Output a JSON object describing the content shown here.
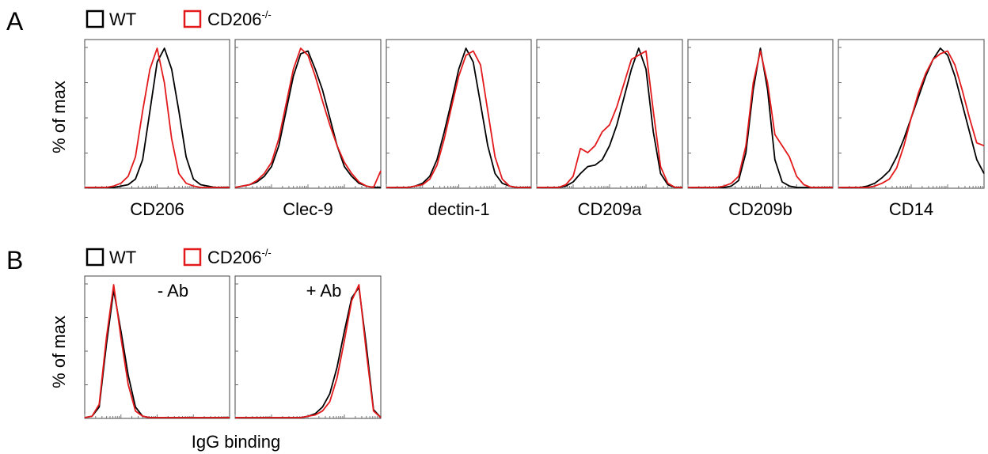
{
  "panel_a": {
    "label": "A",
    "legend": {
      "wt": "WT",
      "ko_base": "CD206",
      "ko_sup": "-/-"
    },
    "ylabel": "% of max"
  },
  "panel_b": {
    "label": "B",
    "legend": {
      "wt": "WT",
      "ko_base": "CD206",
      "ko_sup": "-/-"
    },
    "ylabel": "% of max",
    "xlabel": "IgG binding"
  },
  "colors": {
    "wt": "#000000",
    "ko": "#e31a1c",
    "frame": "#444444"
  },
  "chart_data": [
    {
      "id": "CD206",
      "type": "line",
      "panel": "A",
      "xlabel": "CD206",
      "inset": "",
      "x": [
        0,
        0.05,
        0.1,
        0.15,
        0.2,
        0.25,
        0.3,
        0.35,
        0.4,
        0.45,
        0.5,
        0.55,
        0.6,
        0.65,
        0.7,
        0.75,
        0.8,
        0.85,
        0.9,
        0.95,
        1
      ],
      "series": [
        {
          "name": "WT",
          "color": "wt",
          "values": [
            0,
            0,
            0,
            0,
            0,
            0.01,
            0.02,
            0.06,
            0.2,
            0.55,
            0.9,
            1.0,
            0.85,
            0.55,
            0.22,
            0.06,
            0.02,
            0.01,
            0,
            0,
            0
          ]
        },
        {
          "name": "CD206-/-",
          "color": "ko",
          "values": [
            0,
            0,
            0,
            0,
            0.01,
            0.03,
            0.08,
            0.22,
            0.55,
            0.85,
            1.0,
            0.75,
            0.35,
            0.1,
            0.03,
            0.01,
            0,
            0,
            0,
            0,
            0
          ]
        }
      ]
    },
    {
      "id": "Clec-9",
      "type": "line",
      "panel": "A",
      "xlabel": "Clec-9",
      "inset": "",
      "x": [
        0,
        0.05,
        0.1,
        0.15,
        0.2,
        0.25,
        0.3,
        0.35,
        0.4,
        0.45,
        0.5,
        0.55,
        0.6,
        0.65,
        0.7,
        0.75,
        0.8,
        0.85,
        0.9,
        0.95,
        1
      ],
      "series": [
        {
          "name": "WT",
          "color": "wt",
          "values": [
            0,
            0.01,
            0.02,
            0.04,
            0.08,
            0.15,
            0.3,
            0.55,
            0.8,
            0.96,
            0.98,
            0.85,
            0.7,
            0.5,
            0.3,
            0.15,
            0.08,
            0.03,
            0.01,
            0,
            0
          ]
        },
        {
          "name": "CD206-/-",
          "color": "ko",
          "values": [
            0,
            0.01,
            0.02,
            0.05,
            0.1,
            0.18,
            0.35,
            0.6,
            0.85,
            1.0,
            0.95,
            0.8,
            0.62,
            0.45,
            0.3,
            0.18,
            0.1,
            0.04,
            0.01,
            0,
            0.12
          ]
        }
      ]
    },
    {
      "id": "dectin-1",
      "type": "line",
      "panel": "A",
      "xlabel": "dectin-1",
      "inset": "",
      "x": [
        0,
        0.05,
        0.1,
        0.15,
        0.2,
        0.25,
        0.3,
        0.35,
        0.4,
        0.45,
        0.5,
        0.55,
        0.6,
        0.65,
        0.7,
        0.75,
        0.8,
        0.85,
        0.9,
        0.95,
        1
      ],
      "series": [
        {
          "name": "WT",
          "color": "wt",
          "values": [
            0,
            0,
            0,
            0,
            0.01,
            0.03,
            0.08,
            0.2,
            0.4,
            0.62,
            0.85,
            1.0,
            0.9,
            0.6,
            0.3,
            0.1,
            0.03,
            0.01,
            0,
            0,
            0
          ]
        },
        {
          "name": "CD206-/-",
          "color": "ko",
          "values": [
            0,
            0,
            0,
            0,
            0.01,
            0.02,
            0.06,
            0.16,
            0.35,
            0.58,
            0.8,
            0.95,
            0.98,
            0.88,
            0.55,
            0.22,
            0.06,
            0.01,
            0,
            0,
            0
          ]
        }
      ]
    },
    {
      "id": "CD209a",
      "type": "line",
      "panel": "A",
      "xlabel": "CD209a",
      "inset": "",
      "x": [
        0,
        0.05,
        0.1,
        0.15,
        0.2,
        0.25,
        0.3,
        0.35,
        0.4,
        0.45,
        0.5,
        0.55,
        0.6,
        0.65,
        0.7,
        0.75,
        0.8,
        0.85,
        0.9,
        0.95,
        1
      ],
      "series": [
        {
          "name": "WT",
          "color": "wt",
          "values": [
            0,
            0,
            0,
            0,
            0.01,
            0.04,
            0.1,
            0.15,
            0.16,
            0.2,
            0.3,
            0.45,
            0.65,
            0.85,
            1.0,
            0.85,
            0.4,
            0.1,
            0.02,
            0,
            0
          ]
        },
        {
          "name": "CD206-/-",
          "color": "ko",
          "values": [
            0,
            0,
            0,
            0,
            0.02,
            0.08,
            0.28,
            0.25,
            0.3,
            0.4,
            0.45,
            0.58,
            0.75,
            0.92,
            0.95,
            0.98,
            0.55,
            0.15,
            0.03,
            0,
            0
          ]
        }
      ]
    },
    {
      "id": "CD209b",
      "type": "line",
      "panel": "A",
      "xlabel": "CD209b",
      "inset": "",
      "x": [
        0,
        0.05,
        0.1,
        0.15,
        0.2,
        0.25,
        0.3,
        0.35,
        0.4,
        0.45,
        0.5,
        0.55,
        0.6,
        0.65,
        0.7,
        0.75,
        0.8,
        0.85,
        0.9,
        0.95,
        1
      ],
      "series": [
        {
          "name": "WT",
          "color": "wt",
          "values": [
            0,
            0,
            0,
            0,
            0,
            0,
            0.01,
            0.05,
            0.25,
            0.7,
            1.0,
            0.7,
            0.2,
            0.04,
            0.01,
            0,
            0,
            0,
            0,
            0,
            0
          ]
        },
        {
          "name": "CD206-/-",
          "color": "ko",
          "values": [
            0,
            0,
            0,
            0,
            0,
            0.01,
            0.03,
            0.08,
            0.3,
            0.75,
            0.98,
            0.75,
            0.38,
            0.3,
            0.22,
            0.08,
            0.02,
            0,
            0,
            0,
            0
          ]
        }
      ]
    },
    {
      "id": "CD14",
      "type": "line",
      "panel": "A",
      "xlabel": "CD14",
      "inset": "",
      "x": [
        0,
        0.05,
        0.1,
        0.15,
        0.2,
        0.25,
        0.3,
        0.35,
        0.4,
        0.45,
        0.5,
        0.55,
        0.6,
        0.65,
        0.7,
        0.75,
        0.8,
        0.85,
        0.9,
        0.95,
        1
      ],
      "series": [
        {
          "name": "WT",
          "color": "wt",
          "values": [
            0,
            0,
            0,
            0,
            0.01,
            0.03,
            0.07,
            0.12,
            0.22,
            0.35,
            0.5,
            0.65,
            0.8,
            0.92,
            1.0,
            0.95,
            0.8,
            0.6,
            0.4,
            0.2,
            0.1
          ]
        },
        {
          "name": "CD206-/-",
          "color": "ko",
          "values": [
            0,
            0,
            0,
            0,
            0,
            0.01,
            0.03,
            0.06,
            0.14,
            0.3,
            0.5,
            0.68,
            0.82,
            0.92,
            0.96,
            0.98,
            0.88,
            0.7,
            0.5,
            0.32,
            0.3
          ]
        }
      ]
    },
    {
      "id": "minus-ab",
      "type": "line",
      "panel": "B",
      "xlabel": "",
      "inset": "- Ab",
      "x": [
        0,
        0.05,
        0.1,
        0.15,
        0.2,
        0.25,
        0.3,
        0.35,
        0.4,
        0.45,
        0.5,
        0.55,
        0.6,
        0.65,
        0.7,
        0.75,
        0.8,
        0.85,
        0.9,
        0.95,
        1
      ],
      "series": [
        {
          "name": "WT",
          "color": "wt",
          "values": [
            0,
            0.01,
            0.08,
            0.55,
            0.96,
            0.65,
            0.32,
            0.08,
            0.01,
            0,
            0,
            0,
            0,
            0,
            0,
            0,
            0,
            0,
            0,
            0,
            0
          ]
        },
        {
          "name": "CD206-/-",
          "color": "ko",
          "values": [
            0,
            0.01,
            0.1,
            0.6,
            1.0,
            0.6,
            0.25,
            0.05,
            0.01,
            0,
            0,
            0,
            0,
            0,
            0,
            0,
            0,
            0,
            0,
            0,
            0
          ]
        }
      ]
    },
    {
      "id": "plus-ab",
      "type": "line",
      "panel": "B",
      "xlabel": "",
      "inset": "+ Ab",
      "x": [
        0,
        0.05,
        0.1,
        0.15,
        0.2,
        0.25,
        0.3,
        0.35,
        0.4,
        0.45,
        0.5,
        0.55,
        0.6,
        0.65,
        0.7,
        0.75,
        0.8,
        0.85,
        0.9,
        0.95,
        1
      ],
      "series": [
        {
          "name": "WT",
          "color": "wt",
          "values": [
            0,
            0,
            0,
            0,
            0,
            0,
            0,
            0,
            0,
            0,
            0.01,
            0.03,
            0.08,
            0.18,
            0.38,
            0.65,
            0.9,
            0.98,
            0.55,
            0.06,
            0
          ]
        },
        {
          "name": "CD206-/-",
          "color": "ko",
          "values": [
            0,
            0,
            0,
            0,
            0,
            0,
            0,
            0,
            0,
            0,
            0.01,
            0.02,
            0.05,
            0.12,
            0.3,
            0.58,
            0.88,
            1.0,
            0.5,
            0.05,
            0
          ]
        }
      ]
    }
  ]
}
